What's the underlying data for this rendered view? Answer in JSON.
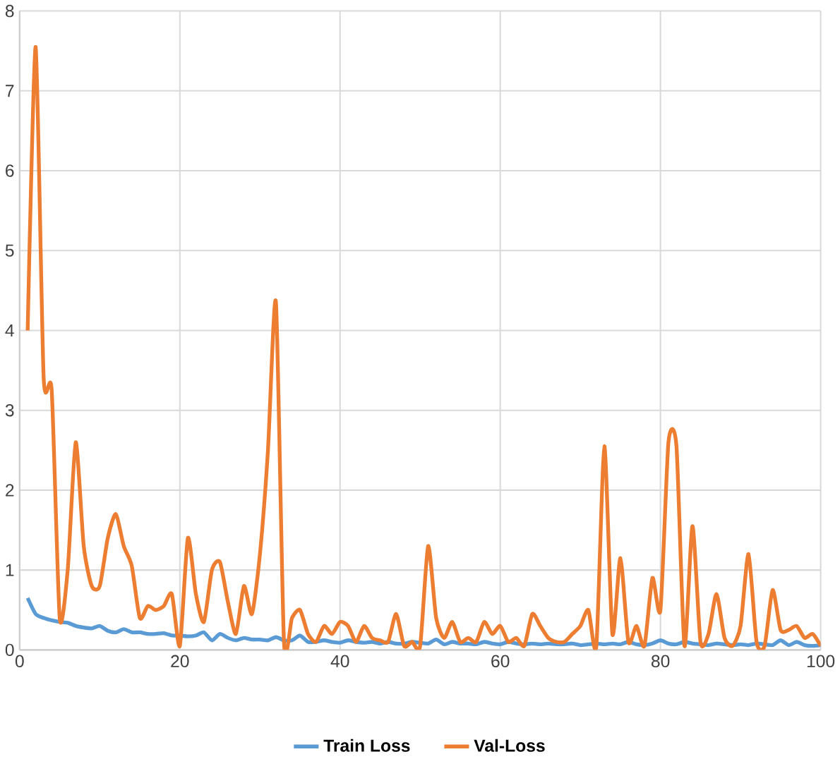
{
  "chart_data": {
    "type": "line",
    "x": [
      1,
      2,
      3,
      4,
      5,
      6,
      7,
      8,
      9,
      10,
      11,
      12,
      13,
      14,
      15,
      16,
      17,
      18,
      19,
      20,
      21,
      22,
      23,
      24,
      25,
      26,
      27,
      28,
      29,
      30,
      31,
      32,
      33,
      34,
      35,
      36,
      37,
      38,
      39,
      40,
      41,
      42,
      43,
      44,
      45,
      46,
      47,
      48,
      49,
      50,
      51,
      52,
      53,
      54,
      55,
      56,
      57,
      58,
      59,
      60,
      61,
      62,
      63,
      64,
      65,
      66,
      67,
      68,
      69,
      70,
      71,
      72,
      73,
      74,
      75,
      76,
      77,
      78,
      79,
      80,
      81,
      82,
      83,
      84,
      85,
      86,
      87,
      88,
      89,
      90,
      91,
      92,
      93,
      94,
      95,
      96,
      97,
      98,
      99,
      100
    ],
    "series": [
      {
        "name": "Train Loss",
        "color": "#5b9bd5",
        "values": [
          0.65,
          0.45,
          0.4,
          0.37,
          0.35,
          0.34,
          0.3,
          0.28,
          0.27,
          0.3,
          0.24,
          0.22,
          0.26,
          0.22,
          0.22,
          0.2,
          0.2,
          0.21,
          0.18,
          0.18,
          0.17,
          0.18,
          0.22,
          0.12,
          0.2,
          0.15,
          0.12,
          0.15,
          0.13,
          0.13,
          0.12,
          0.16,
          0.12,
          0.12,
          0.18,
          0.1,
          0.1,
          0.12,
          0.1,
          0.09,
          0.12,
          0.1,
          0.09,
          0.1,
          0.08,
          0.1,
          0.08,
          0.08,
          0.1,
          0.09,
          0.08,
          0.13,
          0.07,
          0.1,
          0.08,
          0.08,
          0.07,
          0.1,
          0.08,
          0.07,
          0.1,
          0.08,
          0.07,
          0.08,
          0.07,
          0.08,
          0.07,
          0.07,
          0.08,
          0.06,
          0.07,
          0.08,
          0.07,
          0.08,
          0.07,
          0.1,
          0.07,
          0.06,
          0.08,
          0.12,
          0.08,
          0.07,
          0.1,
          0.08,
          0.07,
          0.06,
          0.08,
          0.07,
          0.06,
          0.07,
          0.06,
          0.08,
          0.07,
          0.06,
          0.12,
          0.06,
          0.1,
          0.06,
          0.05,
          0.06
        ]
      },
      {
        "name": "Val-Loss",
        "color": "#ed7d31",
        "values": [
          4.0,
          7.55,
          3.4,
          3.25,
          0.4,
          1.0,
          2.6,
          1.3,
          0.8,
          0.8,
          1.4,
          1.7,
          1.3,
          1.05,
          0.4,
          0.55,
          0.5,
          0.55,
          0.7,
          0.05,
          1.4,
          0.7,
          0.35,
          1.0,
          1.1,
          0.6,
          0.2,
          0.8,
          0.45,
          1.2,
          2.5,
          4.35,
          0.1,
          0.4,
          0.5,
          0.2,
          0.1,
          0.3,
          0.2,
          0.35,
          0.3,
          0.1,
          0.3,
          0.15,
          0.12,
          0.1,
          0.45,
          0.05,
          0.1,
          0.05,
          1.3,
          0.4,
          0.15,
          0.35,
          0.1,
          0.15,
          0.1,
          0.35,
          0.2,
          0.3,
          0.1,
          0.15,
          0.05,
          0.45,
          0.3,
          0.15,
          0.1,
          0.1,
          0.2,
          0.3,
          0.5,
          0.05,
          2.55,
          0.2,
          1.15,
          0.1,
          0.3,
          0.05,
          0.9,
          0.5,
          2.6,
          2.55,
          0.05,
          1.55,
          0.1,
          0.2,
          0.7,
          0.15,
          0.05,
          0.3,
          1.2,
          0.1,
          0.05,
          0.75,
          0.25,
          0.25,
          0.3,
          0.15,
          0.2,
          0.05
        ]
      }
    ],
    "xlim": [
      0,
      100
    ],
    "xticks": [
      0,
      20,
      40,
      60,
      80,
      100
    ],
    "ylim": [
      0,
      8
    ],
    "yticks": [
      0,
      1,
      2,
      3,
      4,
      5,
      6,
      7,
      8
    ],
    "grid": true,
    "legend": "bottom",
    "marker": "none",
    "line_style": "solid"
  }
}
